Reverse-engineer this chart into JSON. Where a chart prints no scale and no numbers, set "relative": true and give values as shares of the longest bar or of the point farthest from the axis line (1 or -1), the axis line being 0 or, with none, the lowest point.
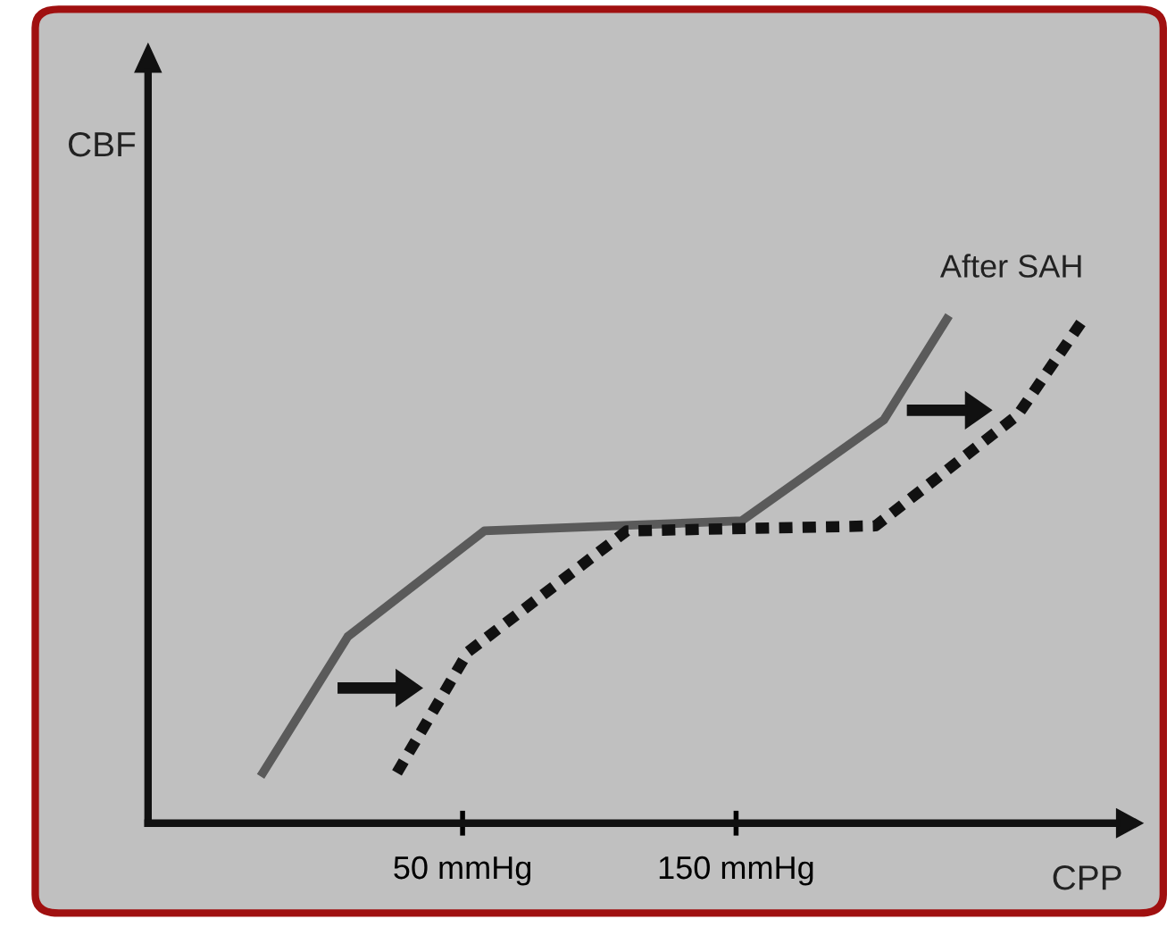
{
  "chart_data": {
    "type": "line",
    "relative": true,
    "xlabel": "CPP",
    "annotations": [
      "CBF"
    ],
    "xlim": [
      -65,
      289
    ],
    "xticks": [
      {
        "value": 50,
        "label": "50 mmHg"
      },
      {
        "value": 150,
        "label": "150 mmHg"
      }
    ],
    "tick_labels": "x",
    "grid": false,
    "legend": false,
    "marker": "none",
    "series": [
      {
        "color": "#5a5a5a",
        "line_style": "solid",
        "x": [
          -23,
          8,
          58,
          152,
          204,
          227
        ],
        "values": [
          0.1,
          0.37,
          0.58,
          0.6,
          0.8,
          1.0
        ]
      },
      {
        "name": "After SAH",
        "color": "#111111",
        "line_style": "dotted",
        "x": [
          26,
          52,
          110,
          201,
          253,
          277
        ],
        "values": [
          0.1,
          0.34,
          0.58,
          0.59,
          0.81,
          1.0
        ]
      }
    ]
  }
}
